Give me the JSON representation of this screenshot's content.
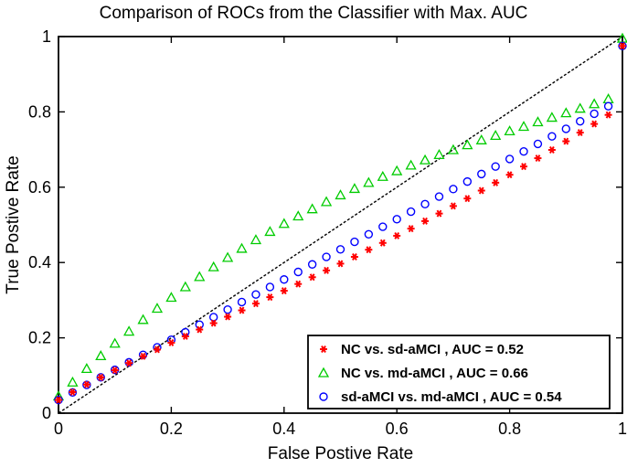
{
  "chart_data": {
    "type": "scatter",
    "title": "Comparison of ROCs from the Classifier with Max. AUC",
    "xlabel": "False Postive Rate",
    "ylabel": "True Postive Rate",
    "xlim": [
      0,
      1
    ],
    "ylim": [
      0,
      1
    ],
    "xticks": [
      0,
      0.2,
      0.4,
      0.6,
      0.8,
      1
    ],
    "yticks": [
      0,
      0.2,
      0.4,
      0.6,
      0.8,
      1
    ],
    "xtick_labels": [
      "0",
      "0.2",
      "0.4",
      "0.6",
      "0.8",
      "1"
    ],
    "ytick_labels": [
      "0",
      "0.2",
      "0.4",
      "0.6",
      "0.8",
      "1"
    ],
    "grid": false,
    "legend_position": "bottom-right",
    "reference_line": {
      "style": "dashed",
      "color": "#000000",
      "x": [
        0,
        1
      ],
      "y": [
        0,
        1
      ]
    },
    "series": [
      {
        "name": "NC vs. sd-aMCI , AUC = 0.52",
        "marker": "asterisk",
        "color": "#ff0000",
        "x": [
          0,
          0.025,
          0.05,
          0.075,
          0.1,
          0.125,
          0.15,
          0.175,
          0.2,
          0.225,
          0.25,
          0.275,
          0.3,
          0.325,
          0.35,
          0.375,
          0.4,
          0.425,
          0.45,
          0.475,
          0.5,
          0.525,
          0.55,
          0.575,
          0.6,
          0.625,
          0.65,
          0.675,
          0.7,
          0.725,
          0.75,
          0.775,
          0.8,
          0.825,
          0.85,
          0.875,
          0.9,
          0.925,
          0.95,
          0.975,
          1
        ],
        "y": [
          0.035,
          0.056,
          0.076,
          0.095,
          0.114,
          0.133,
          0.151,
          0.169,
          0.187,
          0.204,
          0.222,
          0.239,
          0.256,
          0.273,
          0.291,
          0.308,
          0.325,
          0.343,
          0.361,
          0.379,
          0.397,
          0.415,
          0.434,
          0.452,
          0.471,
          0.49,
          0.51,
          0.53,
          0.55,
          0.57,
          0.591,
          0.612,
          0.633,
          0.655,
          0.677,
          0.699,
          0.722,
          0.745,
          0.768,
          0.792,
          0.975
        ]
      },
      {
        "name": "NC vs. md-aMCI , AUC = 0.66",
        "marker": "triangle",
        "color": "#00cc00",
        "x": [
          0,
          0.025,
          0.05,
          0.075,
          0.1,
          0.125,
          0.15,
          0.175,
          0.2,
          0.225,
          0.25,
          0.275,
          0.3,
          0.325,
          0.35,
          0.375,
          0.4,
          0.425,
          0.45,
          0.475,
          0.5,
          0.525,
          0.55,
          0.575,
          0.6,
          0.625,
          0.65,
          0.675,
          0.7,
          0.725,
          0.75,
          0.775,
          0.8,
          0.825,
          0.85,
          0.875,
          0.9,
          0.925,
          0.95,
          0.975,
          1
        ],
        "y": [
          0.045,
          0.082,
          0.118,
          0.152,
          0.185,
          0.217,
          0.248,
          0.278,
          0.307,
          0.335,
          0.362,
          0.388,
          0.413,
          0.437,
          0.46,
          0.482,
          0.503,
          0.523,
          0.542,
          0.561,
          0.579,
          0.596,
          0.612,
          0.628,
          0.643,
          0.658,
          0.672,
          0.686,
          0.699,
          0.712,
          0.725,
          0.737,
          0.749,
          0.761,
          0.773,
          0.785,
          0.797,
          0.809,
          0.821,
          0.834,
          0.995
        ]
      },
      {
        "name": "sd-aMCI vs. md-aMCI , AUC = 0.54",
        "marker": "circle",
        "color": "#0000ff",
        "x": [
          0,
          0.025,
          0.05,
          0.075,
          0.1,
          0.125,
          0.15,
          0.175,
          0.2,
          0.225,
          0.25,
          0.275,
          0.3,
          0.325,
          0.35,
          0.375,
          0.4,
          0.425,
          0.45,
          0.475,
          0.5,
          0.525,
          0.55,
          0.575,
          0.6,
          0.625,
          0.65,
          0.675,
          0.7,
          0.725,
          0.75,
          0.775,
          0.8,
          0.825,
          0.85,
          0.875,
          0.9,
          0.925,
          0.95,
          0.975,
          1
        ],
        "y": [
          0.035,
          0.055,
          0.075,
          0.095,
          0.115,
          0.135,
          0.155,
          0.175,
          0.195,
          0.215,
          0.235,
          0.255,
          0.275,
          0.295,
          0.315,
          0.335,
          0.355,
          0.375,
          0.395,
          0.415,
          0.435,
          0.455,
          0.475,
          0.495,
          0.515,
          0.535,
          0.555,
          0.575,
          0.595,
          0.615,
          0.635,
          0.655,
          0.675,
          0.695,
          0.715,
          0.735,
          0.755,
          0.775,
          0.795,
          0.815,
          0.975
        ]
      }
    ]
  }
}
